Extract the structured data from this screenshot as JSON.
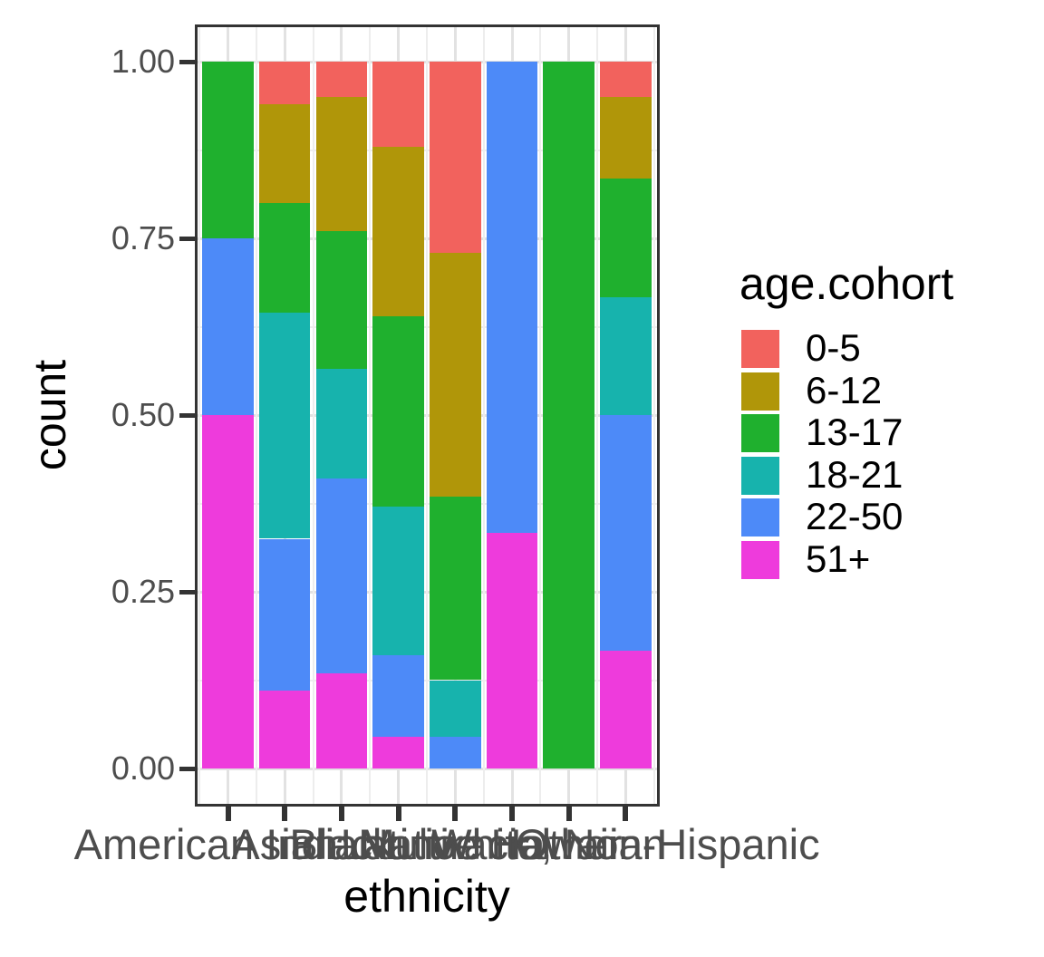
{
  "chart_data": {
    "type": "bar",
    "stacked": true,
    "normalized": true,
    "xlabel": "ethnicity",
    "ylabel": "count",
    "ylim": [
      0,
      1
    ],
    "grid": true,
    "ytick_labels": [
      "1.00",
      "0.75",
      "0.50",
      "0.25",
      "0.00"
    ],
    "ytick_values": [
      1.0,
      0.75,
      0.5,
      0.25,
      0.0
    ],
    "categories": [
      "American Indian",
      "Asian",
      "Black",
      "Latino",
      "Multiracial",
      "Native Hawaiian",
      "Other",
      "White, Non-Hispanic"
    ],
    "legend": {
      "title": "age.cohort",
      "position": "right"
    },
    "series": [
      {
        "name": "0-5",
        "color": "#f2625d",
        "values": [
          0,
          0.06,
          0.05,
          0.12,
          0.27,
          0,
          0,
          0.05
        ]
      },
      {
        "name": "6-12",
        "color": "#b09609",
        "values": [
          0,
          0.14,
          0.19,
          0.24,
          0.345,
          0,
          0,
          0.115
        ]
      },
      {
        "name": "13-17",
        "color": "#1fb02e",
        "values": [
          0.25,
          0.155,
          0.195,
          0.27,
          0.26,
          0,
          1,
          0.168
        ]
      },
      {
        "name": "18-21",
        "color": "#17b3ad",
        "values": [
          0,
          0.32,
          0.155,
          0.21,
          0.08,
          0,
          0,
          0.167
        ]
      },
      {
        "name": "22-50",
        "color": "#4d8af8",
        "values": [
          0.25,
          0.215,
          0.275,
          0.115,
          0.045,
          0.667,
          0,
          0.333
        ]
      },
      {
        "name": "51+",
        "color": "#ee3bdc",
        "values": [
          0.5,
          0.11,
          0.135,
          0.045,
          0,
          0.333,
          0,
          0.167
        ]
      }
    ]
  }
}
